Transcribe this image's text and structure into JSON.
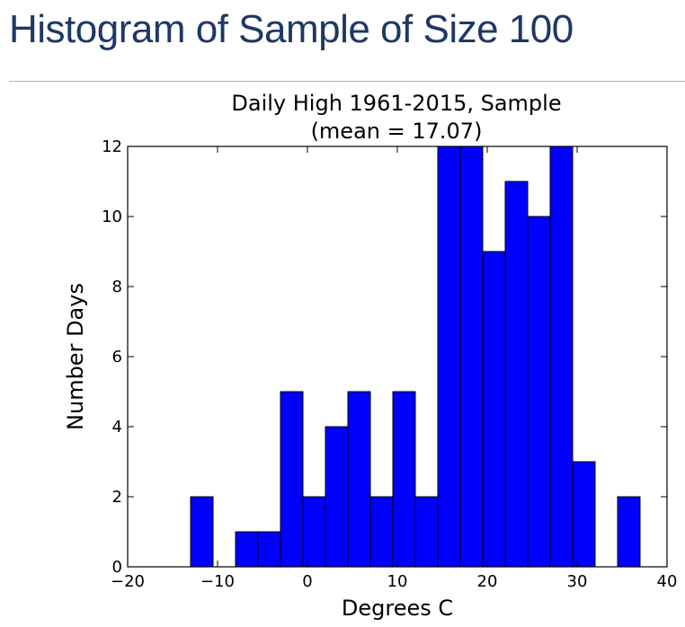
{
  "slide": {
    "title": "Histogram of Sample of Size 100"
  },
  "chart_data": {
    "type": "bar",
    "title_lines": [
      "Daily High 1961-2015, Sample",
      "(mean = 17.07)"
    ],
    "xlabel": "Degrees C",
    "ylabel": "Number Days",
    "xlim": [
      -20,
      40
    ],
    "ylim": [
      0,
      12
    ],
    "xticks": [
      -20,
      -10,
      0,
      10,
      20,
      30,
      40
    ],
    "xtick_labels": [
      "−20",
      "−10",
      "0",
      "10",
      "20",
      "30",
      "40"
    ],
    "yticks": [
      0,
      2,
      4,
      6,
      8,
      10,
      12
    ],
    "ytick_labels": [
      "0",
      "2",
      "4",
      "6",
      "8",
      "10",
      "12"
    ],
    "bin_edges": [
      -13,
      -10.5,
      -8,
      -5.5,
      -3,
      -0.5,
      2,
      4.5,
      7,
      9.5,
      12,
      14.5,
      17,
      19.5,
      22,
      24.5,
      27,
      29.5,
      32,
      34.5,
      37
    ],
    "counts": [
      2,
      0,
      1,
      1,
      5,
      2,
      4,
      5,
      2,
      5,
      2,
      12,
      12,
      9,
      11,
      10,
      12,
      3,
      0,
      2
    ],
    "bar_color": "#0000ff",
    "edge_color": "#000000"
  }
}
